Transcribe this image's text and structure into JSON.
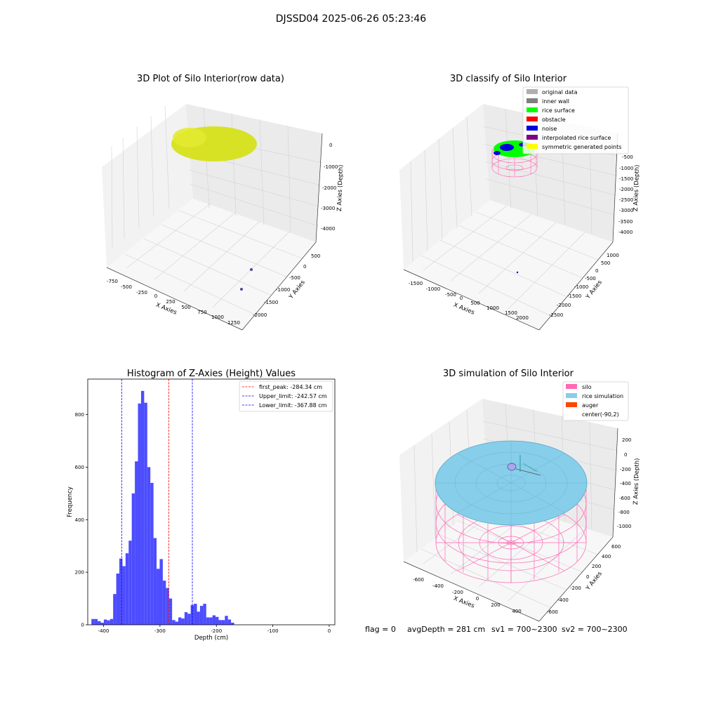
{
  "figure": {
    "suptitle": "DJSSD04 2025-06-26 05:23:46",
    "footer": {
      "flag": "flag = 0",
      "avg_depth": "avgDepth = 281 cm",
      "sv1": "sv1 = 700~2300",
      "sv2": "sv2 = 700~2300"
    }
  },
  "colors": {
    "rice_yellow": "#d6e21a",
    "original": "#b0b0b0",
    "inner_wall": "#808080",
    "rice_surface": "#00ff00",
    "obstacle": "#ff0000",
    "noise": "#0000dd",
    "interpolated": "#800080",
    "symmetric": "#ffff00",
    "silo": "#ff69b4",
    "rice_sim": "#87ceeb",
    "auger": "#ff4500",
    "hist_bar": "#4d4dff",
    "first_peak_line": "#ff0000",
    "limit_line": "#0000ff"
  },
  "chart_data": [
    {
      "type": "scatter",
      "title": "3D Plot of Silo Interior(row data)",
      "xlabel": "X Axies",
      "ylabel": "Y Axies",
      "zlabel": "Z Axies (Depth)",
      "x_ticks": [
        "-750",
        "-500",
        "-250",
        "0",
        "250",
        "500",
        "750",
        "1000",
        "1250"
      ],
      "y_ticks": [
        "-2000",
        "-1500",
        "-1000",
        "-500",
        "0",
        "500"
      ],
      "z_ticks": [
        "0",
        "-1000",
        "-2000",
        "-3000",
        "-4000"
      ]
    },
    {
      "type": "scatter",
      "title": "3D classify of Silo Interior",
      "xlabel": "X Axies",
      "ylabel": "Y Axies",
      "zlabel": "Z Axies (Depth)",
      "x_ticks": [
        "-1500",
        "-1000",
        "-500",
        "0",
        "500",
        "1000",
        "1500",
        "2000"
      ],
      "y_ticks": [
        "-2500",
        "-2000",
        "-1500",
        "-1000",
        "-500",
        "0",
        "500",
        "1000"
      ],
      "z_ticks": [
        "-500",
        "-1000",
        "-1500",
        "-2000",
        "-2500",
        "-3000",
        "-3500",
        "-4000"
      ],
      "legend": [
        {
          "name": "original data",
          "color": "#b0b0b0"
        },
        {
          "name": "inner wall",
          "color": "#808080"
        },
        {
          "name": "rice surface",
          "color": "#00ff00"
        },
        {
          "name": "obstacle",
          "color": "#ff0000"
        },
        {
          "name": "noise",
          "color": "#0000dd"
        },
        {
          "name": "interpolated rice surface",
          "color": "#800080"
        },
        {
          "name": "symmetric generated points",
          "color": "#ffff00"
        }
      ],
      "legend_position": "top-right"
    },
    {
      "type": "bar",
      "title": "Histogram of Z-Axies (Height) Values",
      "xlabel": "Depth (cm)",
      "ylabel": "Frequency",
      "xlim": [
        -428,
        10
      ],
      "ylim": [
        0,
        935
      ],
      "x_ticks": [
        -400,
        -300,
        -200,
        -100,
        0
      ],
      "y_ticks": [
        0,
        200,
        400,
        600,
        800
      ],
      "bin_width": 5.5,
      "bins_start": [
        -421.5,
        -416,
        -410.5,
        -405,
        -399.5,
        -394,
        -388.5,
        -383,
        -377.5,
        -372,
        -366.5,
        -361,
        -355.5,
        -350,
        -344.5,
        -339,
        -333.5,
        -328,
        -322.5,
        -317,
        -311.5,
        -306,
        -300.5,
        -295,
        -289.5,
        -284,
        -278.5,
        -273,
        -267.5,
        -262,
        -256.5,
        -251,
        -245.5,
        -240,
        -234.5,
        -229,
        -223.5,
        -218,
        -212.5,
        -207,
        -201.5,
        -196,
        -190.5,
        -185,
        -179.5,
        -174,
        -168.5,
        -163,
        -157.5,
        -152,
        -146.5,
        -141,
        -135.5,
        -130,
        -124.5,
        -119,
        -113.5,
        -108,
        -102.5,
        -97,
        -91.5,
        -86,
        -80.5,
        -75,
        -69.5,
        -64,
        -58.5,
        -53,
        -47.5
      ],
      "values": [
        22,
        22,
        14,
        8,
        20,
        17,
        22,
        117,
        195,
        252,
        223,
        272,
        320,
        500,
        622,
        842,
        890,
        845,
        600,
        540,
        330,
        213,
        250,
        168,
        140,
        100,
        18,
        12,
        28,
        24,
        48,
        42,
        75,
        80,
        50,
        72,
        80,
        28,
        28,
        36,
        30,
        18,
        18,
        34,
        20,
        8,
        0,
        0,
        0,
        0,
        0,
        0,
        0,
        0,
        0,
        0,
        0,
        0,
        0,
        0,
        0,
        0,
        0,
        0,
        0,
        0,
        0,
        0,
        0
      ],
      "vlines": [
        {
          "name": "first_peak: -284.34 cm",
          "x": -284.34,
          "color": "#ff0000"
        },
        {
          "name": "Upper_limit: -242.57 cm",
          "x": -242.57,
          "color": "#0000ff"
        },
        {
          "name": "Lower_limit: -367.88 cm",
          "x": -367.88,
          "color": "#0000ff"
        }
      ],
      "legend_position": "top-right"
    },
    {
      "type": "area",
      "title": "3D simulation of Silo Interior",
      "xlabel": "X Axies",
      "ylabel": "Y Axies",
      "zlabel": "Z Axies (Depth)",
      "x_ticks": [
        "-600",
        "-400",
        "-200",
        "0",
        "200",
        "400"
      ],
      "y_ticks": [
        "-600",
        "-400",
        "-200",
        "0",
        "200",
        "400",
        "600"
      ],
      "z_ticks": [
        "200",
        "0",
        "-200",
        "-400",
        "-600",
        "-800",
        "-1000"
      ],
      "legend": [
        {
          "name": "silo",
          "color": "#ff69b4"
        },
        {
          "name": "rice simulation",
          "color": "#87ceeb"
        },
        {
          "name": "auger",
          "color": "#ff4500"
        },
        {
          "name": "center(-90,2)",
          "color": ""
        }
      ],
      "legend_position": "top-right"
    }
  ]
}
